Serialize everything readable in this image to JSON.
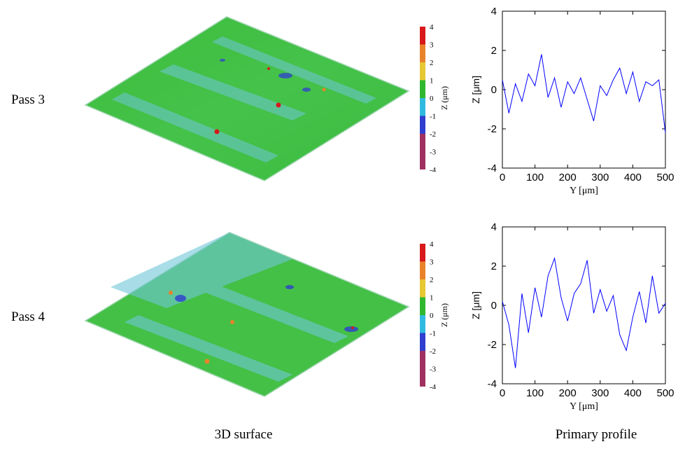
{
  "rows": [
    {
      "label": "Pass 3",
      "colorbar": {
        "label": "Z (μm)",
        "ticks": [
          "4",
          "3",
          "2",
          "1",
          "0",
          "-1",
          "-2",
          "-3",
          "-4"
        ],
        "colors": [
          "#d7191c",
          "#e8822b",
          "#e6c833",
          "#2fb82f",
          "#2fbbe0",
          "#2f3fd0",
          "#a03060"
        ]
      }
    },
    {
      "label": "Pass 4",
      "colorbar": {
        "label": "Z (μm)",
        "ticks": [
          "4",
          "3",
          "2",
          "1",
          "0",
          "-1",
          "-2",
          "-3",
          "-4"
        ],
        "colors": [
          "#d7191c",
          "#e8822b",
          "#e6c833",
          "#2fb82f",
          "#2fbbe0",
          "#2f3fd0",
          "#a03060"
        ]
      }
    }
  ],
  "captions": {
    "left": "3D surface",
    "right": "Primary profile"
  },
  "chart_data": [
    {
      "type": "line",
      "title": "",
      "xlabel": "Y [μm]",
      "ylabel": "Z [μm]",
      "xlim": [
        0,
        500
      ],
      "ylim": [
        -4,
        4
      ],
      "xticks": [
        0,
        100,
        200,
        300,
        400,
        500
      ],
      "yticks": [
        -4,
        -2,
        0,
        2,
        4
      ],
      "line_color": "#0000ff",
      "series": [
        {
          "x": [
            0,
            20,
            40,
            60,
            80,
            100,
            120,
            140,
            160,
            180,
            200,
            220,
            240,
            260,
            280,
            300,
            320,
            340,
            360,
            380,
            400,
            420,
            440,
            460,
            480,
            500
          ],
          "values": [
            0.5,
            -1.2,
            0.3,
            -0.6,
            0.8,
            0.2,
            1.8,
            -0.4,
            0.6,
            -0.9,
            0.4,
            -0.2,
            0.6,
            -0.5,
            -1.6,
            0.2,
            -0.3,
            0.5,
            1.1,
            -0.2,
            0.9,
            -0.6,
            0.4,
            0.2,
            0.5,
            -2.2
          ]
        }
      ]
    },
    {
      "type": "line",
      "title": "",
      "xlabel": "Y [μm]",
      "ylabel": "Z [μm]",
      "xlim": [
        0,
        500
      ],
      "ylim": [
        -4,
        4
      ],
      "xticks": [
        0,
        100,
        200,
        300,
        400,
        500
      ],
      "yticks": [
        -4,
        -2,
        0,
        2,
        4
      ],
      "line_color": "#0000ff",
      "series": [
        {
          "x": [
            0,
            20,
            40,
            60,
            80,
            100,
            120,
            140,
            160,
            180,
            200,
            220,
            240,
            260,
            280,
            300,
            320,
            340,
            360,
            380,
            400,
            420,
            440,
            460,
            480,
            500
          ],
          "values": [
            0.2,
            -1.0,
            -3.2,
            0.6,
            -1.4,
            0.9,
            -0.6,
            1.5,
            2.4,
            0.4,
            -0.8,
            0.6,
            1.1,
            2.3,
            -0.4,
            0.8,
            -0.3,
            0.5,
            -1.5,
            -2.3,
            -0.6,
            0.7,
            -0.9,
            1.5,
            -0.4,
            0.1
          ]
        }
      ]
    }
  ]
}
